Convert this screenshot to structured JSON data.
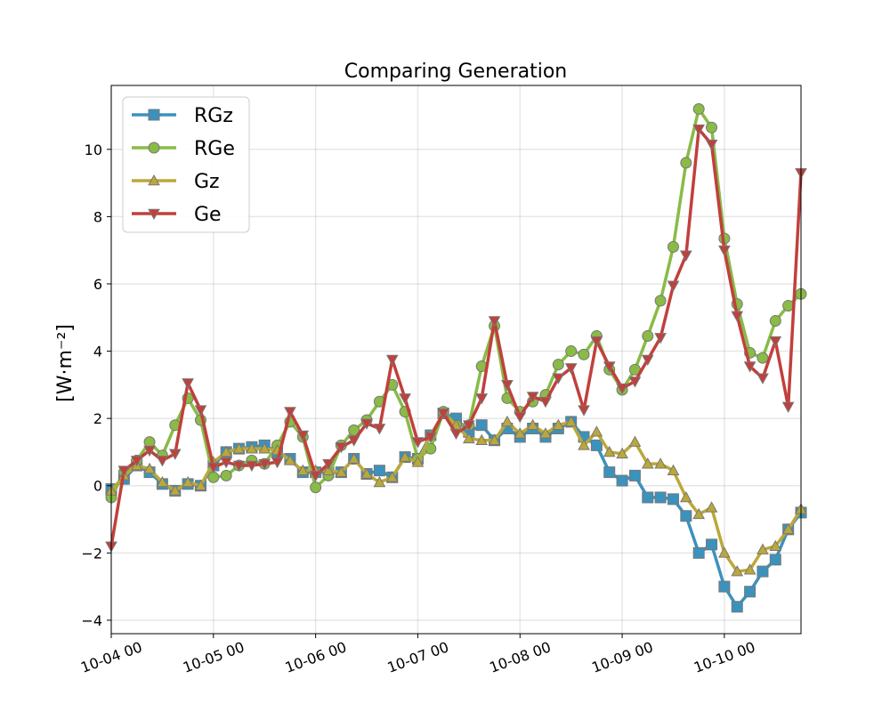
{
  "chart_data": {
    "type": "line",
    "title": "Comparing Generation",
    "xlabel": "",
    "ylabel": "[W·m⁻²]",
    "x_tick_labels": [
      "10-04 00",
      "10-05 00",
      "10-06 00",
      "10-07 00",
      "10-08 00",
      "10-09 00",
      "10-10 00"
    ],
    "y_tick_labels": [
      "−4",
      "−2",
      "0",
      "2",
      "4",
      "6",
      "8",
      "10"
    ],
    "y_ticks": [
      -4,
      -2,
      0,
      2,
      4,
      6,
      8,
      10
    ],
    "ylim": [
      -4.4,
      11.9
    ],
    "xlim_days": [
      0,
      6.75
    ],
    "grid": true,
    "legend_position": "top-left",
    "series": [
      {
        "name": "RGz",
        "color": "#3b92bd",
        "marker": "square",
        "values": [
          -0.1,
          0.2,
          0.6,
          0.4,
          0.05,
          -0.15,
          0.05,
          0.0,
          0.6,
          1.0,
          1.1,
          1.15,
          1.2,
          1.0,
          0.8,
          0.4,
          0.4,
          0.4,
          0.4,
          0.8,
          0.35,
          0.45,
          0.25,
          0.85,
          0.8,
          1.5,
          2.15,
          2.0,
          1.6,
          1.8,
          1.35,
          1.7,
          1.45,
          1.7,
          1.45,
          1.7,
          1.9,
          1.45,
          1.2,
          0.4,
          0.15,
          0.3,
          -0.35,
          -0.35,
          -0.4,
          -0.9,
          -2.0,
          -1.75,
          -3.0,
          -3.6,
          -3.15,
          -2.55,
          -2.2,
          -1.3,
          -0.8
        ]
      },
      {
        "name": "RGe",
        "color": "#89bb46",
        "marker": "circle",
        "values": [
          -0.35,
          0.4,
          0.75,
          1.3,
          0.9,
          1.8,
          2.6,
          1.95,
          0.25,
          0.3,
          0.6,
          0.75,
          0.65,
          1.2,
          1.9,
          1.45,
          -0.05,
          0.3,
          1.2,
          1.65,
          1.95,
          2.5,
          3.0,
          2.2,
          0.8,
          1.1,
          2.2,
          1.8,
          1.8,
          3.55,
          4.75,
          2.6,
          2.2,
          2.5,
          2.7,
          3.6,
          4.0,
          3.9,
          4.45,
          3.45,
          2.85,
          3.45,
          4.45,
          5.5,
          7.1,
          9.6,
          11.2,
          10.65,
          7.35,
          5.4,
          3.95,
          3.8,
          4.9,
          5.35,
          5.7
        ]
      },
      {
        "name": "Gz",
        "color": "#bba839",
        "marker": "triangle-up",
        "values": [
          -0.15,
          0.3,
          0.6,
          0.5,
          0.1,
          -0.15,
          0.1,
          0.0,
          0.7,
          1.0,
          1.1,
          1.1,
          1.1,
          1.05,
          0.75,
          0.45,
          0.45,
          0.45,
          0.4,
          0.8,
          0.35,
          0.1,
          0.25,
          0.85,
          0.7,
          1.5,
          2.15,
          1.8,
          1.4,
          1.35,
          1.35,
          1.9,
          1.55,
          1.8,
          1.55,
          1.8,
          1.9,
          1.2,
          1.6,
          1.0,
          0.95,
          1.3,
          0.65,
          0.65,
          0.45,
          -0.35,
          -0.85,
          -0.65,
          -2.0,
          -2.55,
          -2.5,
          -1.9,
          -1.8,
          -1.3,
          -0.7
        ]
      },
      {
        "name": "Ge",
        "color": "#c0403c",
        "marker": "triangle-down",
        "values": [
          -1.8,
          0.45,
          0.75,
          1.05,
          0.75,
          0.95,
          3.05,
          2.25,
          0.55,
          0.7,
          0.6,
          0.6,
          0.65,
          0.7,
          2.2,
          1.5,
          0.3,
          0.65,
          1.15,
          1.35,
          1.85,
          1.7,
          3.75,
          2.6,
          1.3,
          1.45,
          2.15,
          1.55,
          1.8,
          2.6,
          4.9,
          3.0,
          2.05,
          2.65,
          2.5,
          3.2,
          3.5,
          2.25,
          4.3,
          3.55,
          2.9,
          3.1,
          3.75,
          4.4,
          5.95,
          6.85,
          10.6,
          10.15,
          7.0,
          5.05,
          3.55,
          3.2,
          4.3,
          2.35,
          9.3
        ]
      }
    ]
  }
}
